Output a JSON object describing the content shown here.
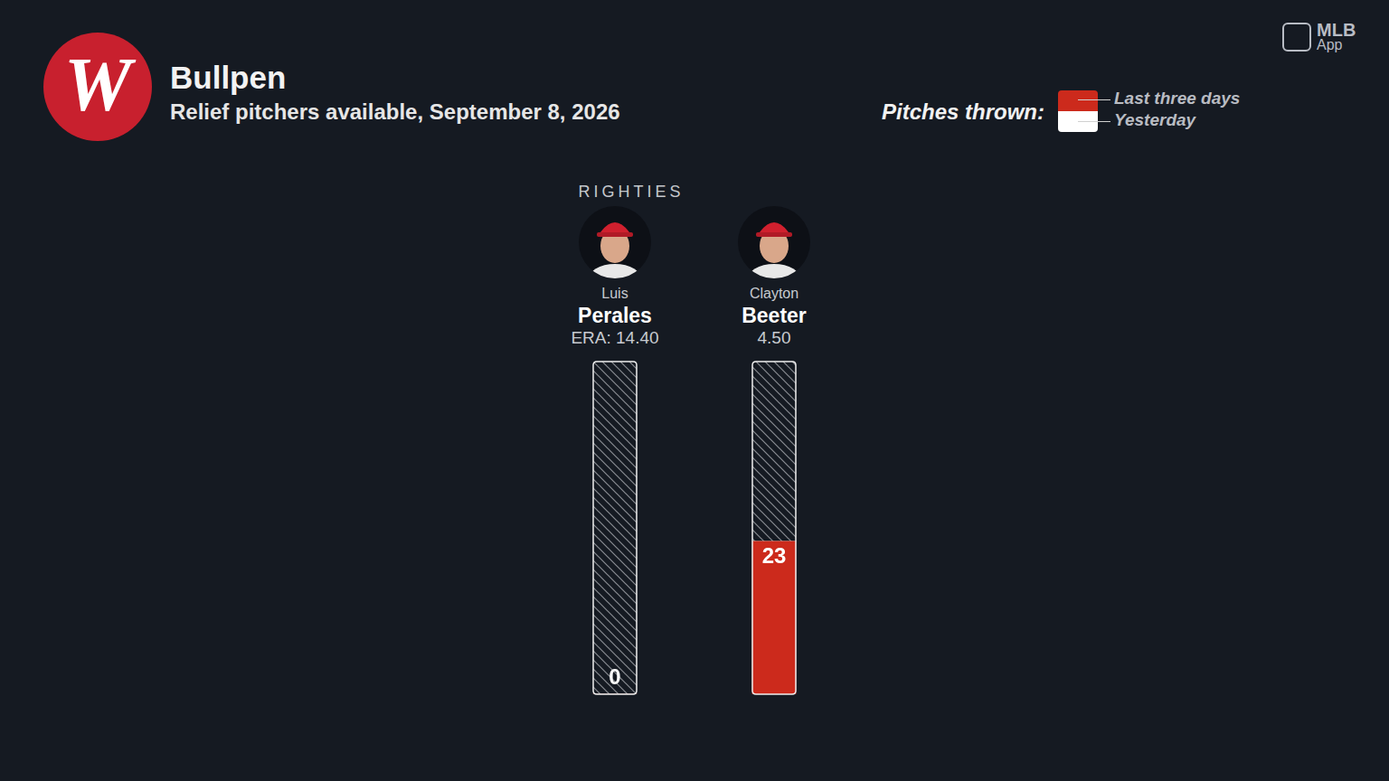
{
  "header": {
    "logo": "W",
    "title": "Bullpen",
    "subtitle": "Relief pitchers available, September 8, 2026",
    "branding": [
      "MLB",
      "App"
    ]
  },
  "chart_data": {
    "type": "bar",
    "stacked": true,
    "group_label": "RIGHTIES",
    "categories": [
      "Perales",
      "Beeter"
    ],
    "first_names": [
      "Luis",
      "Clayton"
    ],
    "era_labels": [
      "ERA: 14.40",
      "4.50"
    ],
    "series": [
      {
        "name": "Last three days",
        "color": "#cc2a1c",
        "values": [
          0,
          23
        ],
        "data_labels": true
      },
      {
        "name": "Yesterday",
        "color": "#ffffff",
        "values": [
          0,
          0
        ]
      }
    ],
    "legend": "top right",
    "legend_title": "Pitches thrown:",
    "ylim": [
      0,
      50
    ],
    "yticks": [],
    "grid": false,
    "tick_labels": false
  }
}
